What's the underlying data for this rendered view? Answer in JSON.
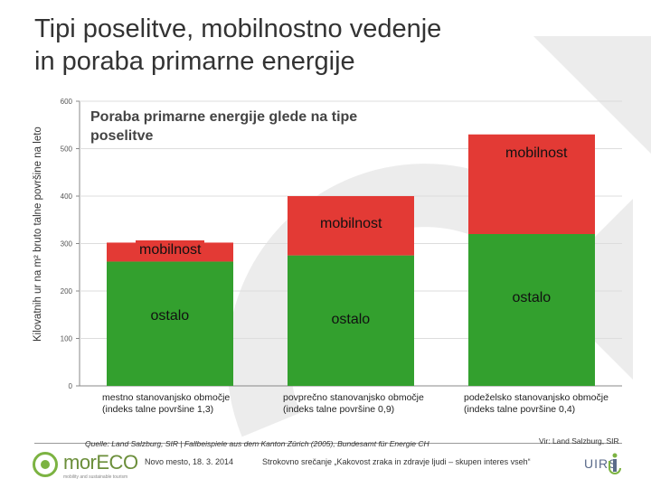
{
  "title_line1": "Tipi poselitve, mobilnostno vedenje",
  "title_line2": "in poraba primarne energije",
  "chart_data": {
    "type": "bar",
    "stacked": true,
    "title": "Poraba primarne energije glede na tipe poselitve",
    "ylabel": "Kilovatnih ur na m² bruto talne površine na leto",
    "xlabel": "",
    "ylim": [
      0,
      600
    ],
    "yticks": [
      0,
      100,
      200,
      300,
      400,
      500,
      600
    ],
    "categories": [
      "mestno stanovanjsko območje (indeks talne površine 1,3)",
      "povprečno stanovanjsko območje (indeks talne površine 0,9)",
      "podeželsko stanovanjsko območje (indeks talne površine 0,4)"
    ],
    "category_lines": [
      [
        "mestno stanovanjsko območje",
        "(indeks talne površine 1,3)"
      ],
      [
        "povprečno stanovanjsko območje",
        "(indeks talne površine 0,9)"
      ],
      [
        "podeželsko stanovanjsko območje",
        "(indeks talne površine 0,4)"
      ]
    ],
    "series": [
      {
        "name": "ostalo",
        "color": "#33a02e",
        "values": [
          262,
          275,
          320
        ]
      },
      {
        "name": "mobilnost",
        "color": "#e33a35",
        "values": [
          40,
          125,
          210
        ]
      }
    ],
    "grid": true
  },
  "footer": {
    "source": "Quelle: Land Salzburg, SIR | Fallbeispiele aus dem Kanton Zürich (2005), Bundesamt für Energie CH",
    "source_note": "Vir: Land Salzburg, SIR",
    "place_date": "Novo mesto, 18. 3. 2014",
    "event": "Strokovno srečanje „Kakovost zraka in zdravje ljudi – skupen interes vseh“",
    "logo_left": "morECO",
    "logo_left_sub": "mobility and sustainable tourism",
    "logo_right": "UIRS"
  },
  "colors": {
    "accent_green": "#7cb342",
    "bg_arrow": "#e9e9e9"
  }
}
